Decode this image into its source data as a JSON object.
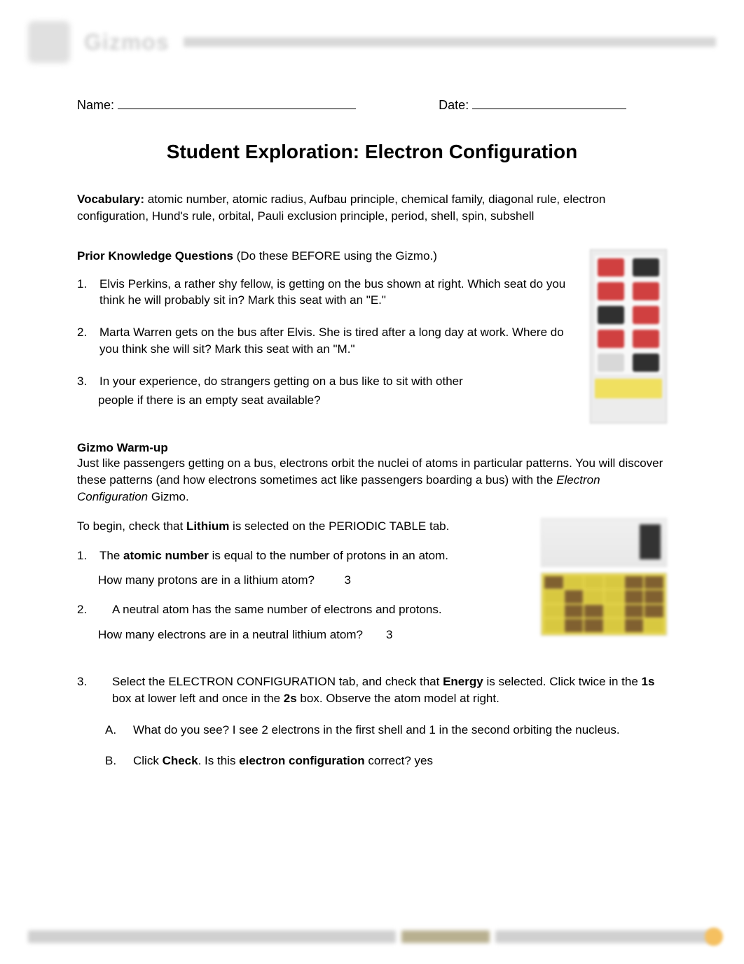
{
  "header": {
    "brand": "Gizmos"
  },
  "name_label": "Name:",
  "date_label": "Date:",
  "title": "Student Exploration: Electron Configuration",
  "vocab": {
    "label": "Vocabulary:",
    "text": " atomic number, atomic radius, Aufbau principle, chemical family, diagonal rule, electron configuration, Hund's rule, orbital, Pauli exclusion principle, period, shell, spin, subshell"
  },
  "prior": {
    "heading_bold": "Prior Knowledge Questions",
    "heading_rest": " (Do these BEFORE using the Gizmo.)",
    "q1_num": "1.",
    "q1_text": "Elvis Perkins, a rather shy fellow, is getting on the bus shown at right. Which seat do you think he will probably sit in? Mark this seat with an \"E.\"",
    "q2_num": "2.",
    "q2_text": "Marta Warren gets on the bus after Elvis. She is tired after a long day at work. Where do you think she will sit? Mark this seat with an \"M.\"",
    "q3_num": "3.",
    "q3_text": "In your experience, do strangers getting on a bus like to sit with other",
    "q3_cont": "people if there is an empty seat available?"
  },
  "bus": {
    "rows": [
      [
        "red",
        "dark"
      ],
      [
        "red",
        "red"
      ],
      [
        "dark",
        "red"
      ],
      [
        "red",
        "red"
      ],
      [
        "empty",
        "dark"
      ]
    ]
  },
  "warmup": {
    "heading": "Gizmo Warm-up",
    "p1_a": "Just like passengers getting on a bus, electrons orbit the nuclei of atoms in particular patterns. You will discover these patterns (and how electrons sometimes act like passengers boarding a bus) with the ",
    "p1_italic": "Electron Configuration",
    "p1_b": " Gizmo.",
    "p2_a": "To begin, check that ",
    "p2_bold": "Lithium",
    "p2_b": " is selected on the PERIODIC TABLE tab.",
    "q1_num": "1.",
    "q1_a": "The ",
    "q1_bold": "atomic number",
    "q1_b": " is equal to the number of protons in an atom.",
    "q1_sub": "How many protons are in a lithium atom?",
    "q1_ans": "3",
    "q2_num": "2.",
    "q2_text": "A neutral atom has the same number of electrons and protons.",
    "q2_sub": "How many electrons are in a neutral lithium atom?",
    "q2_ans": "3",
    "q3_num": "3.",
    "q3_a": "Select the ELECTRON CONFIGURATION tab, and check that ",
    "q3_bold1": "Energy",
    "q3_b": " is selected. Click twice in the ",
    "q3_bold2": "1s",
    "q3_c": " box at lower left and once in the ",
    "q3_bold3": "2s",
    "q3_d": " box. Observe the atom model at right.",
    "q3A_letter": "A.",
    "q3A_text": "What do you see? I see 2 electrons in the first shell and 1 in the second orbiting the nucleus.",
    "q3B_letter": "B.",
    "q3B_a": "Click ",
    "q3B_bold1": "Check",
    "q3B_b": ". Is this ",
    "q3B_bold2": "electron configuration",
    "q3B_c": " correct? yes"
  }
}
